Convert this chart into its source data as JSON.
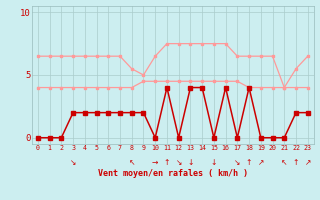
{
  "x": [
    0,
    1,
    2,
    3,
    4,
    5,
    6,
    7,
    8,
    9,
    10,
    11,
    12,
    13,
    14,
    15,
    16,
    17,
    18,
    19,
    20,
    21,
    22,
    23
  ],
  "line_gust": [
    6.5,
    6.5,
    6.5,
    6.5,
    6.5,
    6.5,
    6.5,
    6.5,
    5.5,
    5.0,
    6.5,
    7.5,
    7.5,
    7.5,
    7.5,
    7.5,
    7.5,
    6.5,
    6.5,
    6.5,
    6.5,
    4.0,
    5.5,
    6.5
  ],
  "line_avg": [
    4.0,
    4.0,
    4.0,
    4.0,
    4.0,
    4.0,
    4.0,
    4.0,
    4.0,
    4.5,
    4.5,
    4.5,
    4.5,
    4.5,
    4.5,
    4.5,
    4.5,
    4.5,
    4.0,
    4.0,
    4.0,
    4.0,
    4.0,
    4.0
  ],
  "line_speed": [
    0,
    0,
    0,
    2,
    2,
    2,
    2,
    2,
    2,
    2,
    0,
    4,
    0,
    4,
    4,
    0,
    4,
    0,
    4,
    0,
    0,
    0,
    2,
    2
  ],
  "color_pink": "#ff9999",
  "color_dark": "#cc0000",
  "bg_color": "#cceef0",
  "grid_color": "#aacccc",
  "xlabel": "Vent moyen/en rafales ( km/h )",
  "yticks": [
    0,
    5,
    10
  ],
  "xlim": [
    -0.5,
    23.5
  ],
  "ylim": [
    -0.5,
    10.5
  ],
  "arrows": [
    "",
    "",
    "",
    "↘",
    "",
    "",
    "",
    "",
    "↖",
    "",
    "→",
    "↑",
    "↘",
    "↓",
    "",
    "↓",
    "",
    "↘",
    "↑",
    "↗",
    "",
    "↖",
    "↑",
    "↗"
  ]
}
